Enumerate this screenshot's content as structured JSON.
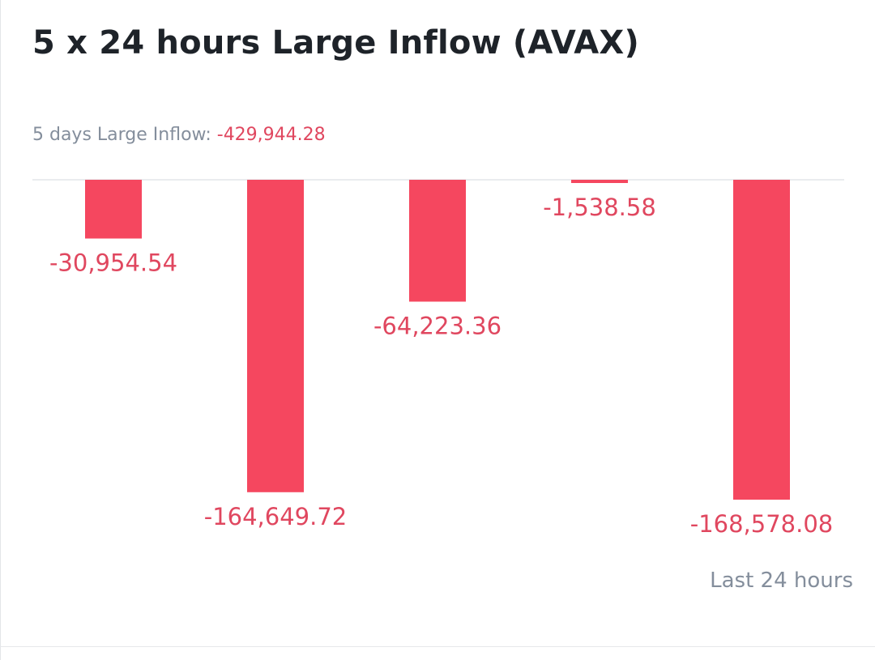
{
  "title": "5 x 24 hours Large Inflow (AVAX)",
  "summary": {
    "label": "5 days Large Inflow: ",
    "value": "-429,944.28"
  },
  "footer_label": "Last 24 hours",
  "colors": {
    "negative_bar": "#f5475f",
    "negative_text": "#e0475f",
    "baseline": "#e3e6ea",
    "muted_text": "#848e9c",
    "title_text": "#1e2329"
  },
  "chart_data": {
    "type": "bar",
    "title": "5 x 24 hours Large Inflow (AVAX)",
    "categories": [
      "",
      "",
      "",
      "",
      ""
    ],
    "values": [
      -30954.54,
      -164649.72,
      -64223.36,
      -1538.58,
      -168578.08
    ],
    "value_labels": [
      "-30,954.54",
      "-164,649.72",
      "-64,223.36",
      "-1,538.58",
      "-168,578.08"
    ],
    "ylim": [
      -168578.08,
      0
    ],
    "grid": false,
    "legend": "none"
  }
}
